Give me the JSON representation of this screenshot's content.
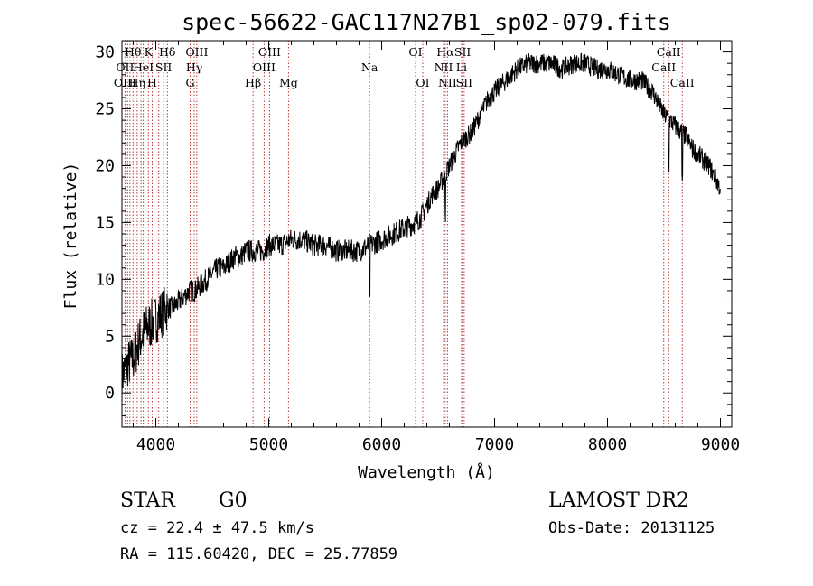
{
  "chart_data": {
    "type": "line",
    "title": "spec-56622-GAC117N27B1_sp02-079.fits",
    "xlabel": "Wavelength (Å)",
    "ylabel": "Flux (relative)",
    "xlim": [
      3700,
      9100
    ],
    "ylim": [
      -3,
      31
    ],
    "xticks": [
      4000,
      5000,
      6000,
      7000,
      8000,
      9000
    ],
    "yticks": [
      0,
      5,
      10,
      15,
      20,
      25,
      30
    ],
    "grid": false,
    "series": [
      {
        "x": [
          3700,
          3750,
          3800,
          3850,
          3900,
          3950,
          4000,
          4050,
          4100,
          4150,
          4200,
          4250,
          4300,
          4350,
          4400,
          4450,
          4500,
          4550,
          4600,
          4650,
          4700,
          4750,
          4800,
          4850,
          4900,
          4950,
          5000,
          5100,
          5200,
          5300,
          5400,
          5500,
          5600,
          5700,
          5800,
          5900,
          6000,
          6100,
          6200,
          6300,
          6350,
          6400,
          6450,
          6500,
          6550,
          6600,
          6650,
          6700,
          6750,
          6800,
          6850,
          6900,
          6950,
          7000,
          7100,
          7200,
          7300,
          7400,
          7500,
          7600,
          7700,
          7800,
          7900,
          8000,
          8100,
          8200,
          8300,
          8400,
          8450,
          8500,
          8550,
          8600,
          8650,
          8700,
          8750,
          8800,
          8850,
          8900,
          8950,
          9000
        ],
        "y": [
          1.5,
          2.5,
          3.0,
          4.5,
          5.5,
          6.0,
          6.5,
          7.0,
          7.5,
          7.5,
          8.0,
          8.5,
          9.0,
          9.0,
          9.5,
          10.0,
          10.5,
          11.0,
          11.0,
          11.5,
          12.0,
          12.0,
          12.5,
          12.5,
          12.5,
          12.5,
          13.0,
          13.0,
          13.5,
          13.5,
          13.0,
          13.0,
          12.5,
          12.5,
          12.5,
          13.0,
          13.5,
          14.0,
          14.5,
          15.0,
          15.5,
          16.5,
          17.5,
          18.0,
          19.0,
          20.0,
          21.0,
          22.0,
          22.5,
          23.0,
          24.0,
          25.0,
          26.0,
          26.5,
          27.5,
          28.5,
          29.0,
          29.0,
          29.0,
          28.5,
          29.0,
          29.0,
          28.5,
          28.5,
          28.0,
          27.5,
          27.5,
          26.5,
          25.5,
          24.5,
          24.0,
          23.5,
          23.0,
          22.5,
          21.5,
          21.0,
          20.5,
          20.0,
          19.0,
          18.0
        ]
      }
    ],
    "line_marks": {
      "wavelengths": [
        3727,
        3750,
        3771,
        3798,
        3835,
        3869,
        3889,
        3934,
        3968,
        4026,
        4069,
        4102,
        4304,
        4340,
        4363,
        4861,
        4959,
        5007,
        5175,
        5893,
        6300,
        6364,
        6548,
        6563,
        6583,
        6707,
        6717,
        6731,
        8498,
        8542,
        8662
      ],
      "color": "#b22222"
    },
    "line_labels": [
      {
        "text": "Hθ",
        "x": 3798,
        "row": 1
      },
      {
        "text": "K",
        "x": 3934,
        "row": 1
      },
      {
        "text": "Hδ",
        "x": 4102,
        "row": 1
      },
      {
        "text": "OIII",
        "x": 4363,
        "row": 1
      },
      {
        "text": "OIII",
        "x": 5007,
        "row": 1
      },
      {
        "text": "OI",
        "x": 6300,
        "row": 1
      },
      {
        "text": "Hα",
        "x": 6563,
        "row": 1
      },
      {
        "text": "SII",
        "x": 6717,
        "row": 1
      },
      {
        "text": "CaII",
        "x": 8542,
        "row": 1
      },
      {
        "text": "OII",
        "x": 3727,
        "row": 2
      },
      {
        "text": "HeI",
        "x": 3889,
        "row": 2
      },
      {
        "text": "SII",
        "x": 4069,
        "row": 2
      },
      {
        "text": "Hγ",
        "x": 4340,
        "row": 2
      },
      {
        "text": "OIII",
        "x": 4959,
        "row": 2
      },
      {
        "text": "Na",
        "x": 5893,
        "row": 2
      },
      {
        "text": "NII",
        "x": 6548,
        "row": 2
      },
      {
        "text": "Li",
        "x": 6707,
        "row": 2
      },
      {
        "text": "CaII",
        "x": 8498,
        "row": 2
      },
      {
        "text": "OIII",
        "x": 3727,
        "row": 3
      },
      {
        "text": "Hη",
        "x": 3835,
        "row": 3
      },
      {
        "text": "H",
        "x": 3968,
        "row": 3
      },
      {
        "text": "G",
        "x": 4304,
        "row": 3
      },
      {
        "text": "Hβ",
        "x": 4861,
        "row": 3
      },
      {
        "text": "Mg",
        "x": 5175,
        "row": 3
      },
      {
        "text": "OI",
        "x": 6364,
        "row": 3
      },
      {
        "text": "NII",
        "x": 6583,
        "row": 3
      },
      {
        "text": "SII",
        "x": 6731,
        "row": 3
      },
      {
        "text": "CaII",
        "x": 8662,
        "row": 3
      }
    ]
  },
  "info": {
    "object_class": "STAR",
    "subclass": "G0",
    "survey": "LAMOST DR2",
    "cz": "cz = 22.4 ± 47.5 km/s",
    "obs_date": "Obs-Date: 20131125",
    "coords": "RA = 115.60420, DEC =  25.77859"
  }
}
